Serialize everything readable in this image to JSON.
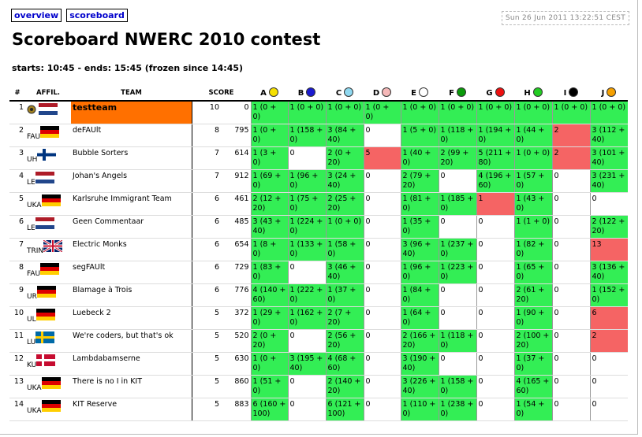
{
  "nav": {
    "links": [
      "overview",
      "scoreboard"
    ],
    "clock": "Sun 26 Jun 2011 13:22:51 CEST"
  },
  "header": {
    "title": "Scoreboard NWERC 2010 contest",
    "subtitle": "starts: 10:45 - ends: 15:45 (frozen since 14:45)"
  },
  "table": {
    "columns": {
      "rank": "#",
      "affil": "AFFIL.",
      "team": "TEAM",
      "score": "SCORE"
    },
    "problems": [
      {
        "label": "A",
        "color": "#f5e000"
      },
      {
        "label": "B",
        "color": "#1a1ad0"
      },
      {
        "label": "C",
        "color": "#8fd8f0"
      },
      {
        "label": "D",
        "color": "#f5b8b8"
      },
      {
        "label": "E",
        "color": "#ffffff"
      },
      {
        "label": "F",
        "color": "#0a9a0a"
      },
      {
        "label": "G",
        "color": "#ee1010"
      },
      {
        "label": "H",
        "color": "#22cc22"
      },
      {
        "label": "I",
        "color": "#000000"
      },
      {
        "label": "J",
        "color": "#f5a000"
      }
    ],
    "rows": [
      {
        "rank": 1,
        "affil": null,
        "flag": "nl",
        "team": "testteam",
        "solved": 10,
        "time": 0,
        "highlight": true,
        "cells": [
          "1 (0 + 0)",
          "1 (0 + 0)",
          "1 (0 + 0)",
          "1 (0 + 0)",
          "1 (0 + 0)",
          "1 (0 + 0)",
          "1 (0 + 0)",
          "1 (0 + 0)",
          "1 (0 + 0)",
          "1 (0 + 0)"
        ],
        "status": [
          "correct",
          "correct",
          "correct",
          "correct",
          "correct",
          "correct",
          "correct",
          "correct",
          "correct",
          "correct"
        ]
      },
      {
        "rank": 2,
        "affil": "FAU",
        "flag": "de",
        "team": "deFAUlt",
        "solved": 8,
        "time": 795,
        "cells": [
          "1 (0 + 0)",
          "1 (158 + 0)",
          "3 (84 + 40)",
          "0",
          "1 (5 + 0)",
          "1 (118 + 0)",
          "1 (194 + 0)",
          "1 (44 + 0)",
          "2",
          "3 (112 + 40)"
        ],
        "status": [
          "correct",
          "correct",
          "correct",
          "none",
          "correct",
          "correct",
          "correct",
          "correct",
          "incorrect",
          "correct"
        ]
      },
      {
        "rank": 3,
        "affil": "UH",
        "flag": "fi",
        "team": "Bubble Sorters",
        "solved": 7,
        "time": 614,
        "cells": [
          "1 (3 + 0)",
          "0",
          "2 (0 + 20)",
          "5",
          "1 (40 + 0)",
          "2 (99 + 20)",
          "5 (211 + 80)",
          "1 (0 + 0)",
          "2",
          "3 (101 + 40)"
        ],
        "status": [
          "correct",
          "none",
          "correct",
          "incorrect",
          "correct",
          "correct",
          "correct",
          "correct",
          "incorrect",
          "correct"
        ]
      },
      {
        "rank": 4,
        "affil": "LE",
        "flag": "nl",
        "team": "Johan's Angels",
        "solved": 7,
        "time": 912,
        "cells": [
          "1 (69 + 0)",
          "1 (96 + 0)",
          "3 (24 + 40)",
          "0",
          "2 (79 + 20)",
          "0",
          "4 (196 + 60)",
          "1 (57 + 0)",
          "0",
          "3 (231 + 40)"
        ],
        "status": [
          "correct",
          "correct",
          "correct",
          "none",
          "correct",
          "none",
          "correct",
          "correct",
          "none",
          "correct"
        ]
      },
      {
        "rank": 5,
        "affil": "UKA",
        "flag": "de",
        "team": "Karlsruhe Immigrant Team",
        "solved": 6,
        "time": 461,
        "cells": [
          "2 (12 + 20)",
          "1 (75 + 0)",
          "2 (25 + 20)",
          "0",
          "1 (81 + 0)",
          "1 (185 + 0)",
          "1",
          "1 (43 + 0)",
          "0",
          "0"
        ],
        "status": [
          "correct",
          "correct",
          "correct",
          "none",
          "correct",
          "correct",
          "incorrect",
          "correct",
          "none",
          "none"
        ]
      },
      {
        "rank": 6,
        "affil": "LE",
        "flag": "nl",
        "team": "Geen Commentaar",
        "solved": 6,
        "time": 485,
        "cells": [
          "3 (43 + 40)",
          "1 (224 + 0)",
          "1 (0 + 0)",
          "0",
          "1 (35 + 0)",
          "0",
          "0",
          "1 (1 + 0)",
          "0",
          "2 (122 + 20)"
        ],
        "status": [
          "correct",
          "correct",
          "correct",
          "none",
          "correct",
          "none",
          "none",
          "correct",
          "none",
          "correct"
        ]
      },
      {
        "rank": 7,
        "affil": "TRIN",
        "flag": "gb",
        "team": "Electric Monks",
        "solved": 6,
        "time": 654,
        "cells": [
          "1 (8 + 0)",
          "1 (133 + 0)",
          "1 (58 + 0)",
          "0",
          "3 (96 + 40)",
          "1 (237 + 0)",
          "0",
          "1 (82 + 0)",
          "0",
          "13"
        ],
        "status": [
          "correct",
          "correct",
          "correct",
          "none",
          "correct",
          "correct",
          "none",
          "correct",
          "none",
          "incorrect"
        ]
      },
      {
        "rank": 8,
        "affil": "FAU",
        "flag": "de",
        "team": "segFAUlt",
        "solved": 6,
        "time": 729,
        "cells": [
          "1 (83 + 0)",
          "0",
          "3 (46 + 40)",
          "0",
          "1 (96 + 0)",
          "1 (223 + 0)",
          "0",
          "1 (65 + 0)",
          "0",
          "3 (136 + 40)"
        ],
        "status": [
          "correct",
          "none",
          "correct",
          "none",
          "correct",
          "correct",
          "none",
          "correct",
          "none",
          "correct"
        ]
      },
      {
        "rank": 9,
        "affil": "UR",
        "flag": "de",
        "team": "Blamage à Trois",
        "solved": 6,
        "time": 776,
        "cells": [
          "4 (140 + 60)",
          "1 (222 + 0)",
          "1 (37 + 0)",
          "0",
          "1 (84 + 0)",
          "0",
          "0",
          "2 (61 + 20)",
          "0",
          "1 (152 + 0)"
        ],
        "status": [
          "correct",
          "correct",
          "correct",
          "none",
          "correct",
          "none",
          "none",
          "correct",
          "none",
          "correct"
        ]
      },
      {
        "rank": 10,
        "affil": "UL",
        "flag": "de",
        "team": "Luebeck 2",
        "solved": 5,
        "time": 372,
        "cells": [
          "1 (29 + 0)",
          "1 (162 + 0)",
          "2 (7 + 20)",
          "0",
          "1 (64 + 0)",
          "0",
          "0",
          "1 (90 + 0)",
          "0",
          "6"
        ],
        "status": [
          "correct",
          "correct",
          "correct",
          "none",
          "correct",
          "none",
          "none",
          "correct",
          "none",
          "incorrect"
        ]
      },
      {
        "rank": 11,
        "affil": "LU",
        "flag": "se",
        "team": "We're coders, but that's ok",
        "solved": 5,
        "time": 520,
        "cells": [
          "2 (0 + 20)",
          "0",
          "2 (56 + 20)",
          "0",
          "2 (166 + 20)",
          "1 (118 + 0)",
          "0",
          "2 (100 + 20)",
          "0",
          "2"
        ],
        "status": [
          "correct",
          "none",
          "correct",
          "none",
          "correct",
          "correct",
          "none",
          "correct",
          "none",
          "incorrect"
        ]
      },
      {
        "rank": 12,
        "affil": "KU",
        "flag": "dk",
        "team": "Lambdabamserne",
        "solved": 5,
        "time": 630,
        "cells": [
          "1 (0 + 0)",
          "3 (195 + 40)",
          "4 (68 + 60)",
          "0",
          "3 (190 + 40)",
          "0",
          "0",
          "1 (37 + 0)",
          "0",
          "0"
        ],
        "status": [
          "correct",
          "correct",
          "correct",
          "none",
          "correct",
          "none",
          "none",
          "correct",
          "none",
          "none"
        ]
      },
      {
        "rank": 13,
        "affil": "UKA",
        "flag": "de",
        "team": "There is no I in KIT",
        "solved": 5,
        "time": 860,
        "cells": [
          "1 (51 + 0)",
          "0",
          "2 (140 + 20)",
          "0",
          "3 (226 + 40)",
          "1 (158 + 0)",
          "0",
          "4 (165 + 60)",
          "0",
          "0"
        ],
        "status": [
          "correct",
          "none",
          "correct",
          "none",
          "correct",
          "correct",
          "none",
          "correct",
          "none",
          "none"
        ]
      },
      {
        "rank": 14,
        "affil": "UKA",
        "flag": "de",
        "team": "KIT Reserve",
        "solved": 5,
        "time": 883,
        "cells": [
          "6 (160 + 100)",
          "0",
          "6 (121 + 100)",
          "0",
          "1 (110 + 0)",
          "1 (238 + 0)",
          "0",
          "1 (54 + 0)",
          "0",
          "0"
        ],
        "status": [
          "correct",
          "none",
          "correct",
          "none",
          "correct",
          "correct",
          "none",
          "correct",
          "none",
          "none"
        ]
      }
    ]
  }
}
